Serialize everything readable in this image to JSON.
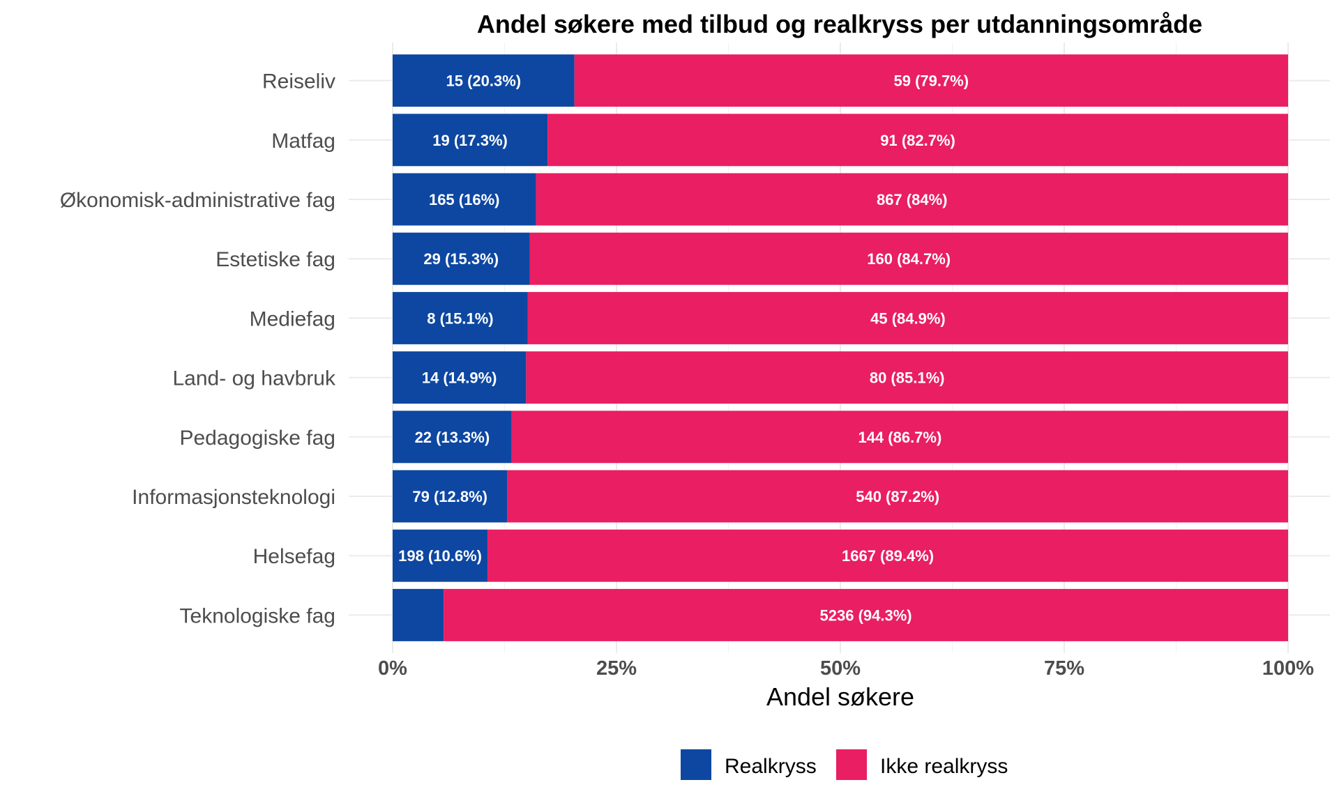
{
  "chart_data": {
    "type": "bar",
    "orientation": "horizontal",
    "stacked": "percent",
    "title": "Andel søkere med tilbud og realkryss per utdanningsområde",
    "xlabel": "Andel søkere",
    "ylabel": "",
    "xlim": [
      0,
      100
    ],
    "x_ticks": [
      "0%",
      "25%",
      "50%",
      "75%",
      "100%"
    ],
    "grid": true,
    "legend_position": "bottom",
    "categories": [
      "Reiseliv",
      "Matfag",
      "Økonomisk-administrative fag",
      "Estetiske fag",
      "Mediefag",
      "Land- og havbruk",
      "Pedagogiske fag",
      "Informasjonsteknologi",
      "Helsefag",
      "Teknologiske fag"
    ],
    "series": [
      {
        "name": "Realkryss",
        "color": "#0d47a1",
        "counts": [
          15,
          19,
          165,
          29,
          8,
          14,
          22,
          79,
          198,
          null
        ],
        "percent": [
          20.3,
          17.3,
          16,
          15.3,
          15.1,
          14.9,
          13.3,
          12.8,
          10.6,
          5.7
        ],
        "labels": [
          "15 (20.3%)",
          "19 (17.3%)",
          "165 (16%)",
          "29 (15.3%)",
          "8 (15.1%)",
          "14 (14.9%)",
          "22 (13.3%)",
          "79 (12.8%)",
          "198 (10.6%)",
          ""
        ]
      },
      {
        "name": "Ikke realkryss",
        "color": "#e91e63",
        "counts": [
          59,
          91,
          867,
          160,
          45,
          80,
          144,
          540,
          1667,
          5236
        ],
        "percent": [
          79.7,
          82.7,
          84,
          84.7,
          84.9,
          85.1,
          86.7,
          87.2,
          89.4,
          94.3
        ],
        "labels": [
          "59 (79.7%)",
          "91 (82.7%)",
          "867 (84%)",
          "160 (84.7%)",
          "45 (84.9%)",
          "80 (85.1%)",
          "144 (86.7%)",
          "540 (87.2%)",
          "1667 (89.4%)",
          "5236 (94.3%)"
        ]
      }
    ]
  }
}
